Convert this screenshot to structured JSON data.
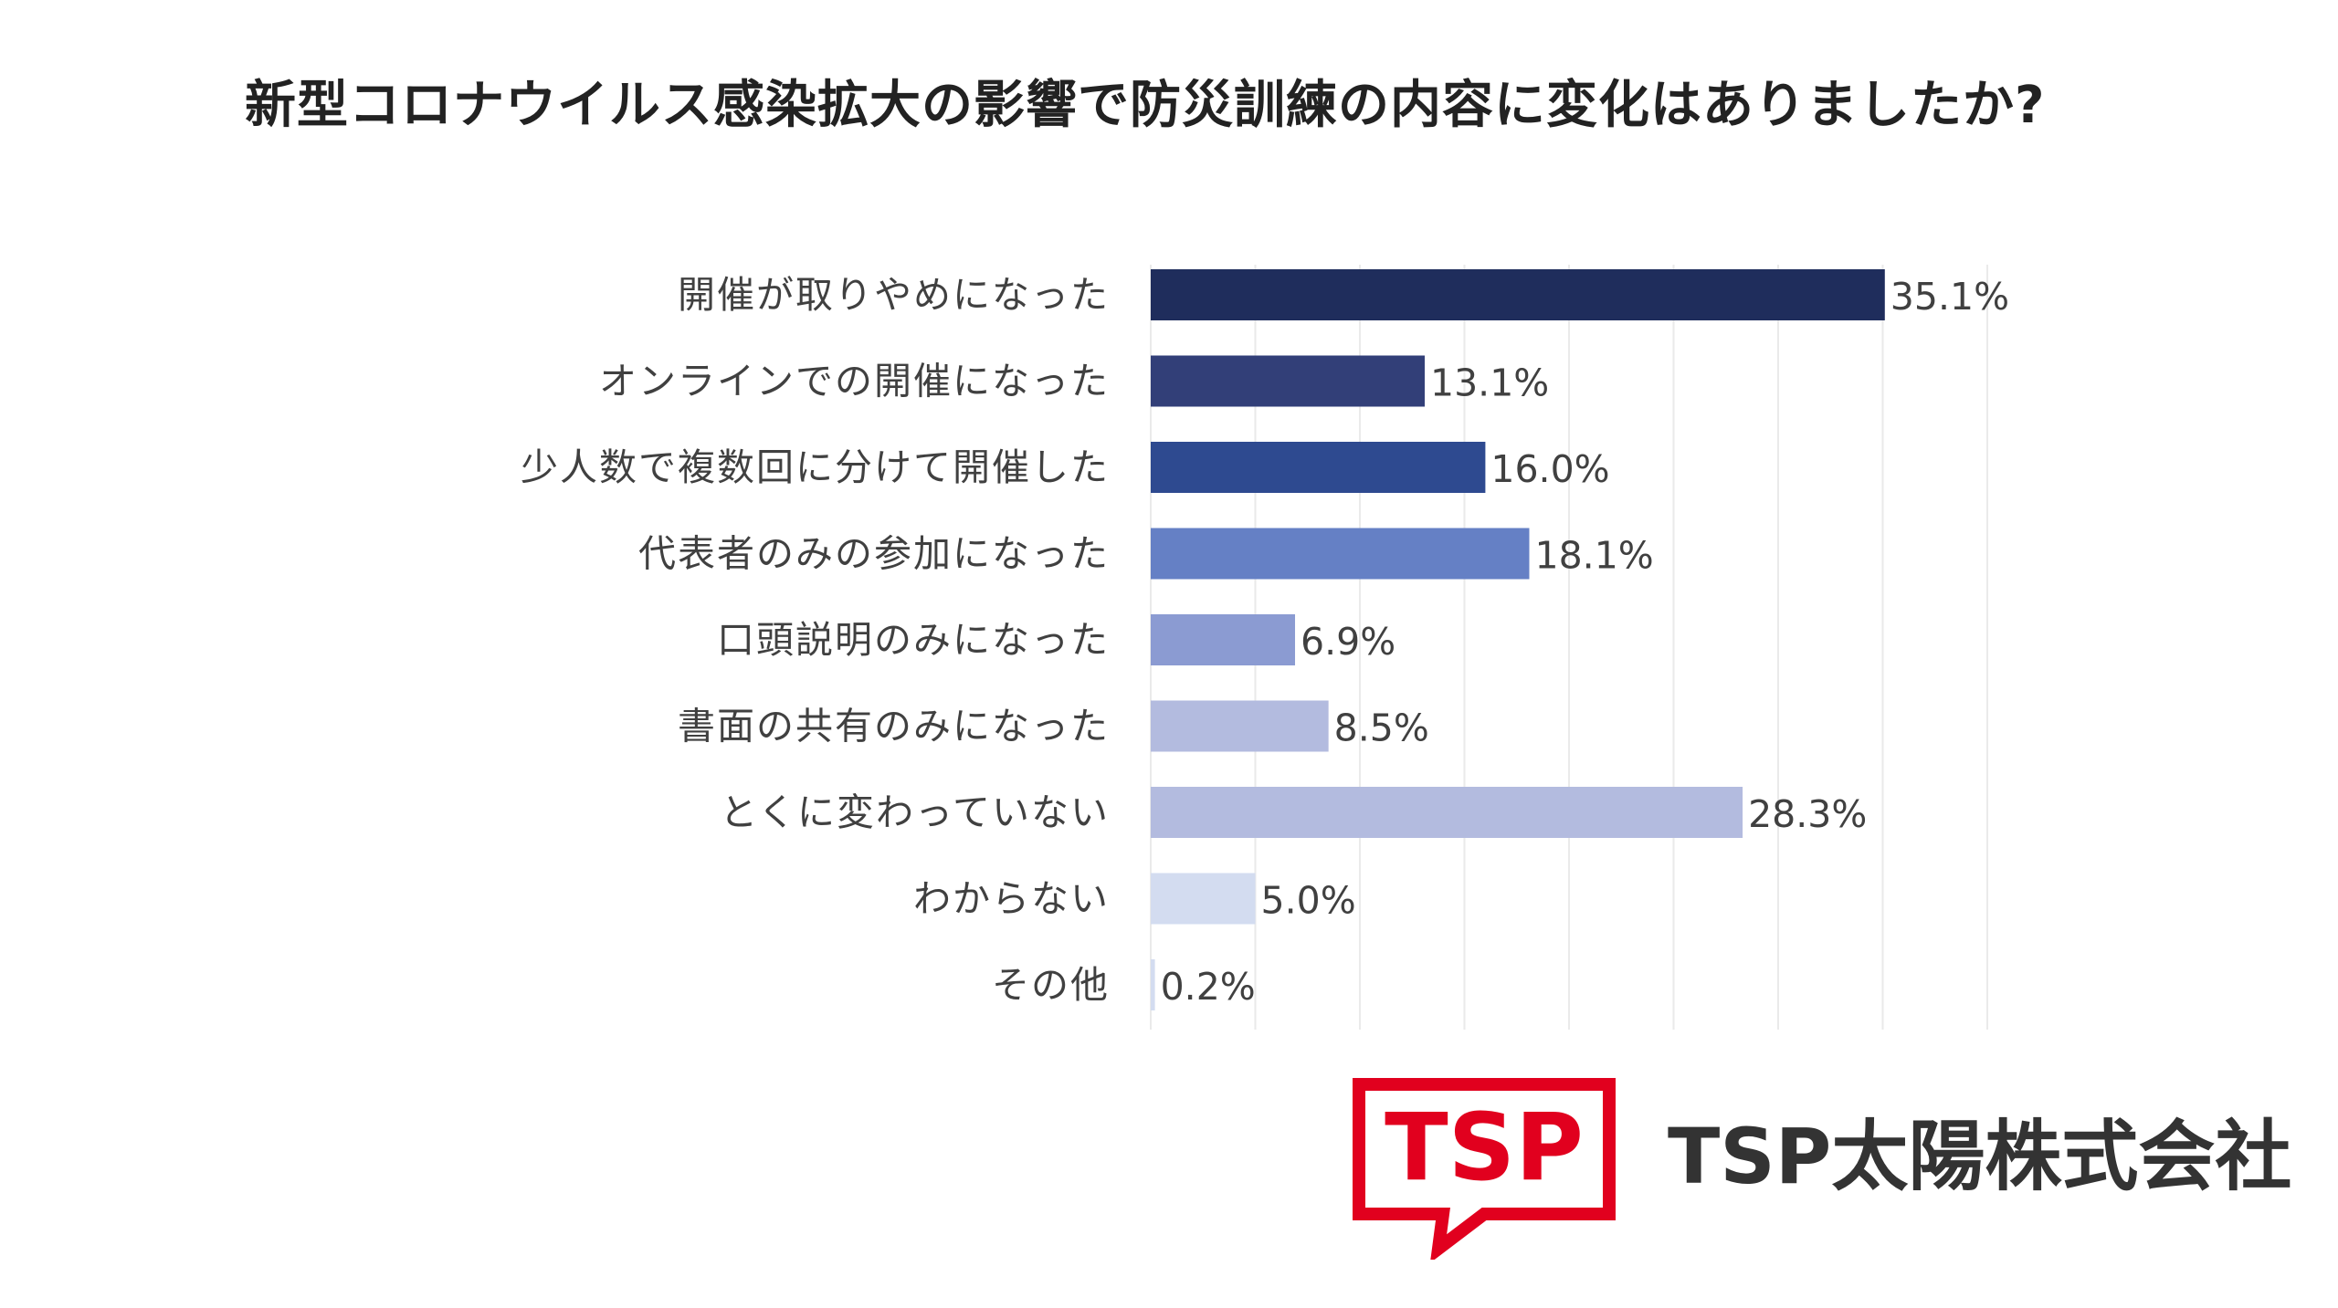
{
  "title": "新型コロナウイルス感染拡大の影響で防災訓練の内容に変化はありましたか?",
  "chart_data": {
    "type": "bar",
    "orientation": "horizontal",
    "title": "新型コロナウイルス感染拡大の影響で防災訓練の内容に変化はありましたか?",
    "categories": [
      "開催が取りやめになった",
      "オンラインでの開催になった",
      "少人数で複数回に分けて開催した",
      "代表者のみの参加になった",
      "口頭説明のみになった",
      "書面の共有のみになった",
      "とくに変わっていない",
      "わからない",
      "その他"
    ],
    "values": [
      35.1,
      13.1,
      16.0,
      18.1,
      6.9,
      8.5,
      28.3,
      5.0,
      0.2
    ],
    "value_labels": [
      "35.1%",
      "13.1%",
      "16.0%",
      "18.1%",
      "6.9%",
      "8.5%",
      "28.3%",
      "5.0%",
      "0.2%"
    ],
    "colors": [
      "#1f2d5c",
      "#323f78",
      "#2e4a90",
      "#6580c5",
      "#8b9bd2",
      "#b3bbdf",
      "#b3bbdf",
      "#d3dcf0",
      "#d3dcf0"
    ],
    "xlim": [
      0,
      40
    ],
    "grid": true,
    "legend": "none"
  },
  "logo": {
    "text": "TSP",
    "color": "#e1001e"
  },
  "company": {
    "name": "TSP太陽株式会社"
  }
}
